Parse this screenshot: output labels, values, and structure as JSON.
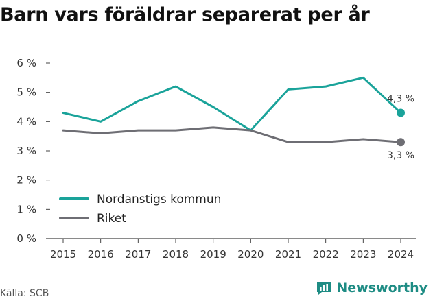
{
  "title": "Barn vars föräldrar separerat per år",
  "source": "Källa: SCB",
  "brand": {
    "name": "Newsworthy",
    "icon": "bar-chart-speech-icon",
    "color": "#1e8c84"
  },
  "chart_data": {
    "type": "line",
    "title": "Barn vars föräldrar separerat per år",
    "xlabel": "",
    "ylabel": "",
    "x": [
      2015,
      2016,
      2017,
      2018,
      2019,
      2020,
      2021,
      2022,
      2023,
      2024
    ],
    "ylim": [
      0,
      6
    ],
    "yticks": [
      0,
      1,
      2,
      3,
      4,
      5,
      6
    ],
    "ytick_labels": [
      "0 %",
      "1 %",
      "2 %",
      "3 %",
      "4 %",
      "5 %",
      "6 %"
    ],
    "grid": false,
    "legend_position": "bottom-left",
    "series": [
      {
        "name": "Nordanstigs kommun",
        "color": "#1aa39a",
        "values": [
          4.3,
          4.0,
          4.7,
          5.2,
          4.5,
          3.7,
          5.1,
          5.2,
          5.5,
          4.3
        ],
        "end_label": "4,3 %"
      },
      {
        "name": "Riket",
        "color": "#6e6e74",
        "values": [
          3.7,
          3.6,
          3.7,
          3.7,
          3.8,
          3.7,
          3.3,
          3.3,
          3.4,
          3.3
        ],
        "end_label": "3,3 %"
      }
    ]
  }
}
